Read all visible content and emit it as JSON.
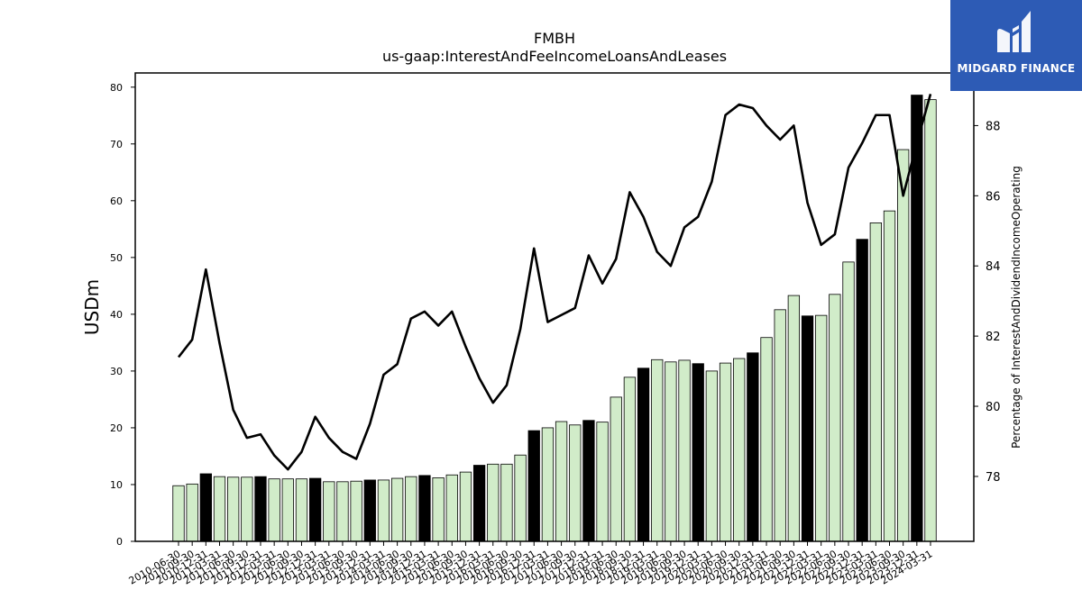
{
  "logo": {
    "text": "MIDGARD FINANCE",
    "background": "#2d5bb5"
  },
  "chart_data": {
    "type": "bar",
    "title": "FMBH",
    "subtitle": "us-gaap:InterestAndFeeIncomeLoansAndLeases",
    "ylabel": "USDm",
    "y2label": "Percentage of InterestAndDividendIncomeOperating",
    "ylim": [
      0,
      82.5
    ],
    "y2lim": [
      76.15,
      89.5
    ],
    "yticks": [
      0,
      10,
      20,
      30,
      40,
      50,
      60,
      70,
      80
    ],
    "y2ticks": [
      78,
      80,
      82,
      84,
      86,
      88
    ],
    "colors": {
      "bar_quarter": "#d1ecc9",
      "bar_annual": "#000000",
      "line": "#000000"
    },
    "categories": [
      "2010-06-30",
      "2010-09-30",
      "2010-12-31",
      "2011-03-31",
      "2011-06-30",
      "2011-09-30",
      "2011-12-31",
      "2012-03-31",
      "2012-06-30",
      "2012-09-30",
      "2012-12-31",
      "2013-03-31",
      "2013-06-30",
      "2013-09-30",
      "2013-12-31",
      "2014-03-31",
      "2014-06-30",
      "2014-09-30",
      "2014-12-31",
      "2015-03-31",
      "2015-06-30",
      "2015-09-30",
      "2015-12-31",
      "2016-03-31",
      "2016-06-30",
      "2016-09-30",
      "2016-12-31",
      "2017-03-31",
      "2017-06-30",
      "2017-09-30",
      "2017-12-31",
      "2018-03-31",
      "2018-06-30",
      "2018-09-30",
      "2018-12-31",
      "2019-03-31",
      "2019-06-30",
      "2019-09-30",
      "2019-12-31",
      "2020-03-31",
      "2020-06-30",
      "2020-09-30",
      "2020-12-31",
      "2021-03-31",
      "2021-06-30",
      "2021-09-30",
      "2021-12-31",
      "2022-03-31",
      "2022-06-30",
      "2022-09-30",
      "2022-12-31",
      "2023-03-31",
      "2023-06-30",
      "2023-09-30",
      "2023-12-31",
      "2024-03-31"
    ],
    "tick_labels": [
      "2010-06-30",
      "2010-09-30",
      "2010-12-31",
      "2011-03-31",
      "2011-06-30",
      "2011-09-30",
      "2011-12-31",
      "2012-03-31",
      "2012-06-30",
      "2012-09-30",
      "2012-12-31",
      "2013-03-31",
      "2013-06-30",
      "2013-09-30",
      "2013-12-31",
      "2014-03-31",
      "2014-06-30",
      "2014-09-30",
      "2014-12-31",
      "2015-03-31",
      "2015-06-30",
      "2015-09-30",
      "2015-12-31",
      "2016-03-31",
      "2016-06-30",
      "2016-09-30",
      "2016-12-31",
      "2017-03-31",
      "2017-06-30",
      "2017-09-30",
      "2017-12-31",
      "2018-03-31",
      "2018-06-30",
      "2018-09-30",
      "2018-12-31",
      "2019-03-31",
      "2019-06-30",
      "2019-09-30",
      "2019-12-31",
      "2020-03-31",
      "2020-06-30",
      "2020-09-30",
      "2020-12-31",
      "2021-03-31",
      "2021-06-30",
      "2021-09-30",
      "2021-12-31",
      "2022-03-31",
      "2022-06-30",
      "2022-09-30",
      "2022-12-31",
      "2023-03-31",
      "2023-06-30",
      "2023-09-30",
      "2023-12-31",
      "2024-03-31"
    ],
    "series": [
      {
        "values": [
          9.8,
          10.1,
          11.9,
          11.4,
          11.3,
          11.3,
          11.4,
          11.0,
          11.0,
          11.0,
          11.1,
          10.5,
          10.5,
          10.6,
          10.8,
          10.8,
          11.1,
          11.4,
          11.6,
          11.2,
          11.7,
          12.2,
          13.4,
          13.6,
          13.6,
          15.2,
          19.5,
          20.0,
          21.1,
          20.5,
          21.3,
          21.0,
          25.4,
          28.9,
          30.5,
          32.0,
          31.6,
          31.9,
          31.3,
          30.0,
          31.4,
          32.2,
          33.2,
          35.9,
          40.8,
          43.3,
          39.7,
          39.8,
          43.5,
          49.2,
          53.2,
          56.1,
          58.2,
          69.0,
          78.6,
          77.8
        ]
      },
      {
        "values": [
          81.4,
          81.9,
          83.9,
          81.8,
          79.9,
          79.1,
          79.2,
          78.6,
          78.2,
          78.7,
          79.7,
          79.1,
          78.7,
          78.5,
          79.5,
          80.9,
          81.2,
          82.5,
          82.7,
          82.3,
          82.7,
          81.7,
          80.8,
          80.1,
          80.6,
          82.2,
          84.5,
          82.4,
          82.6,
          82.8,
          84.3,
          83.5,
          84.2,
          86.1,
          85.4,
          84.4,
          84.0,
          85.1,
          85.4,
          86.4,
          88.3,
          88.6,
          88.5,
          88.0,
          87.6,
          88.0,
          85.8,
          84.6,
          84.9,
          86.8,
          87.5,
          88.3,
          88.3,
          86.0,
          87.5,
          88.9
        ]
      }
    ]
  }
}
